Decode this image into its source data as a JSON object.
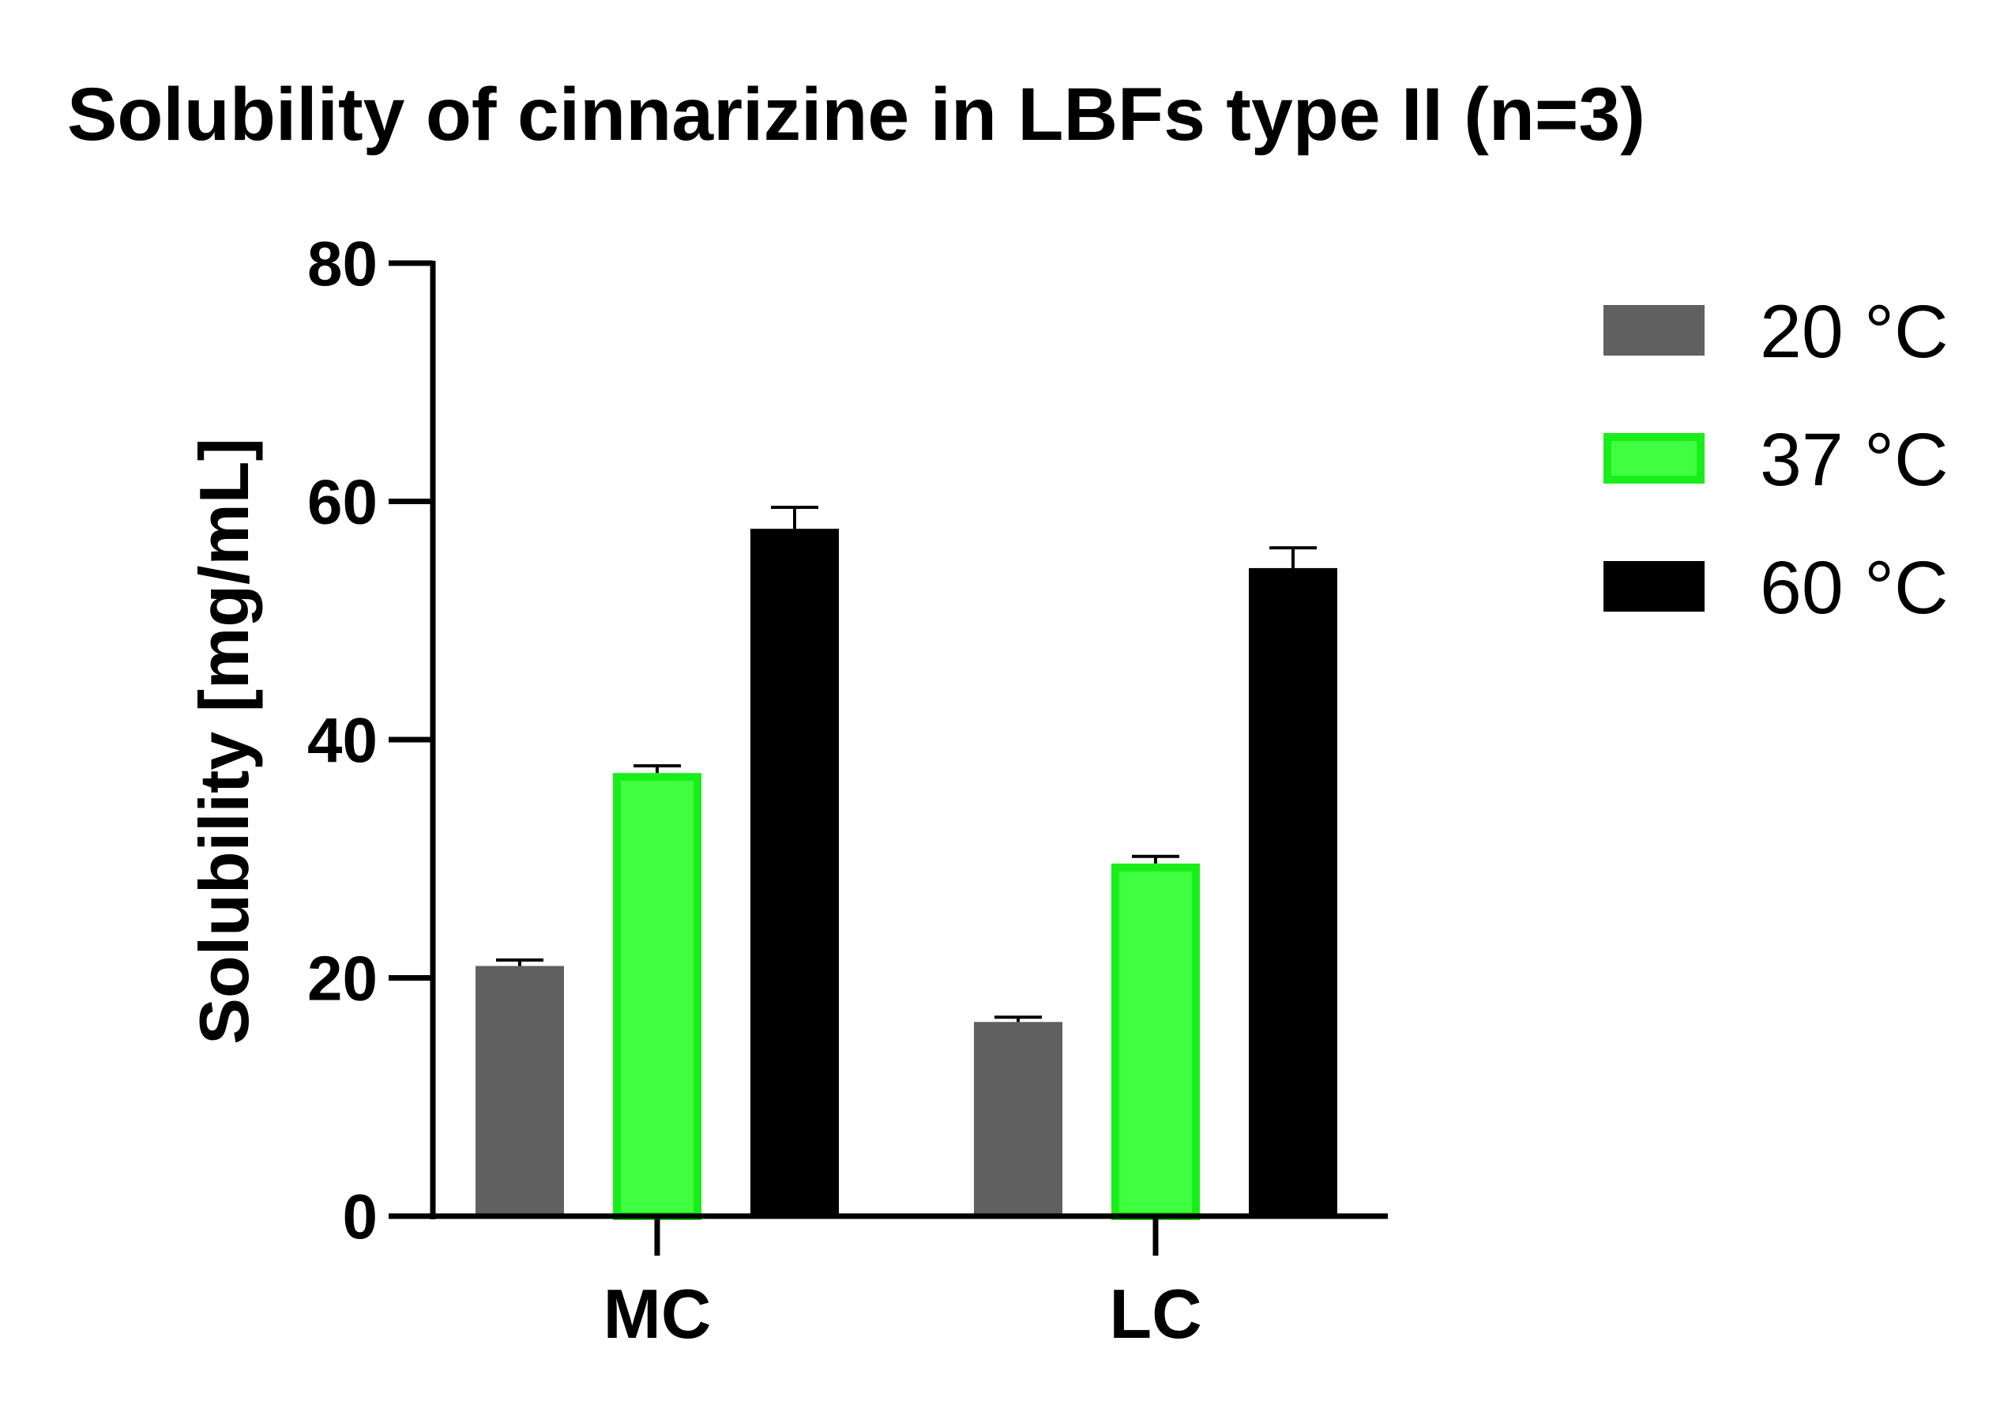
{
  "chart_data": {
    "type": "bar",
    "title": "Solubility of cinnarizine in LBFs type II (n=3)",
    "xlabel": "",
    "ylabel": "Solubility [mg/mL]",
    "ylim": [
      0,
      80
    ],
    "yticks": [
      "0",
      "20",
      "40",
      "60",
      "80"
    ],
    "categories": [
      "MC",
      "LC"
    ],
    "series": [
      {
        "name": "20 °C",
        "values": [
          21.0,
          16.3
        ],
        "errors": [
          0.5,
          0.4
        ],
        "color": "#606060",
        "border": "#606060"
      },
      {
        "name": "37 °C",
        "values": [
          37.2,
          29.6
        ],
        "errors": [
          0.6,
          0.6
        ],
        "color": "#40ff40",
        "border": "#1aee1a"
      },
      {
        "name": "60 °C",
        "values": [
          57.7,
          54.4
        ],
        "errors": [
          1.8,
          1.7
        ],
        "color": "#000000",
        "border": "#000000"
      }
    ],
    "grid": false,
    "legend_position": "right"
  }
}
